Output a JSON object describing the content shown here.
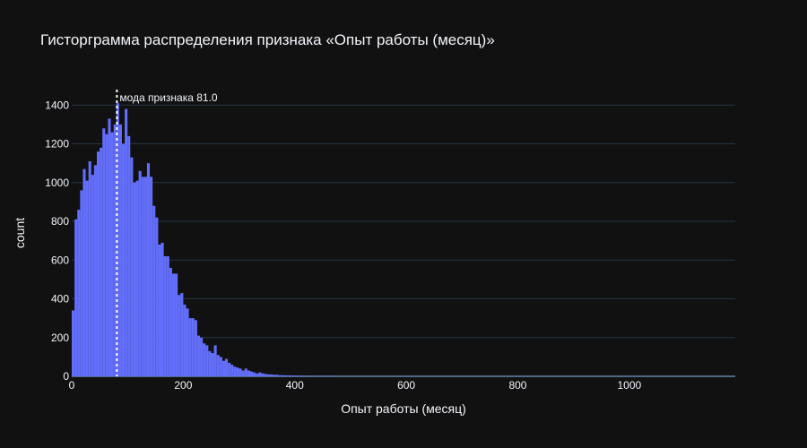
{
  "chart_data": {
    "type": "bar",
    "title": "Гисторграмма распределения признака «Опыт работы (месяц)»",
    "xlabel": "Опыт работы (месяц)",
    "ylabel": "count",
    "xlim": [
      0,
      1190
    ],
    "ylim": [
      0,
      1480
    ],
    "x_ticks": [
      0,
      200,
      400,
      600,
      800,
      1000
    ],
    "y_ticks": [
      0,
      200,
      400,
      600,
      800,
      1000,
      1200,
      1400
    ],
    "bin_width": 5,
    "bin_start": 0,
    "values": [
      340,
      810,
      860,
      960,
      1070,
      1010,
      1110,
      1040,
      1090,
      1160,
      1180,
      1280,
      1250,
      1330,
      1260,
      1300,
      1410,
      1300,
      1200,
      1380,
      1240,
      1130,
      1000,
      1010,
      1060,
      1030,
      1030,
      1100,
      1030,
      880,
      820,
      680,
      690,
      620,
      620,
      560,
      530,
      530,
      420,
      430,
      370,
      350,
      300,
      300,
      290,
      210,
      200,
      170,
      160,
      130,
      120,
      160,
      110,
      100,
      80,
      90,
      70,
      60,
      50,
      45,
      40,
      30,
      40,
      30,
      25,
      20,
      15,
      20,
      15,
      12,
      10,
      10,
      8,
      8,
      6,
      6,
      5,
      5,
      4,
      4,
      3,
      3,
      2,
      2,
      2,
      2,
      2,
      1,
      1,
      1,
      1,
      1,
      1,
      1,
      1
    ],
    "mode_line": {
      "x": 81.0,
      "label": "мода признака 81.0",
      "color": "#ffffff"
    },
    "bar_color": "#636efa",
    "grid": true,
    "background": "#111111",
    "grid_color": "#283442"
  }
}
